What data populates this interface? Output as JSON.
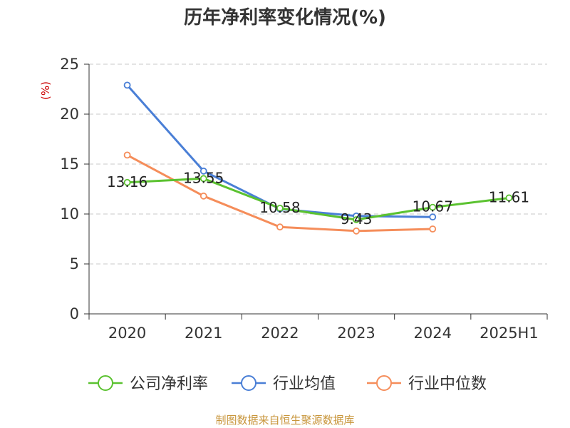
{
  "chart_data": {
    "type": "line",
    "title": "历年净利率变化情况(%)",
    "ylabel": "(%)",
    "categories": [
      "2020",
      "2021",
      "2022",
      "2023",
      "2024",
      "2025H1"
    ],
    "ylim": [
      0,
      25
    ],
    "yticks": [
      0,
      5,
      10,
      15,
      20,
      25
    ],
    "grid": "horizontal-dashed",
    "legend_position": "bottom",
    "series": [
      {
        "name": "公司净利率",
        "color": "#5bc230",
        "values": [
          13.16,
          13.55,
          10.58,
          9.43,
          10.67,
          11.61
        ],
        "labels": [
          "13.16",
          "13.55",
          "10.58",
          "9.43",
          "10.67",
          "11.61"
        ]
      },
      {
        "name": "行业均值",
        "color": "#4a7fd6",
        "values": [
          22.9,
          14.3,
          10.5,
          9.8,
          9.7,
          null
        ]
      },
      {
        "name": "行业中位数",
        "color": "#f58d5a",
        "values": [
          15.9,
          11.8,
          8.7,
          8.3,
          8.5,
          null
        ]
      }
    ]
  },
  "footer": {
    "source": "制图数据来自恒生聚源数据库"
  }
}
